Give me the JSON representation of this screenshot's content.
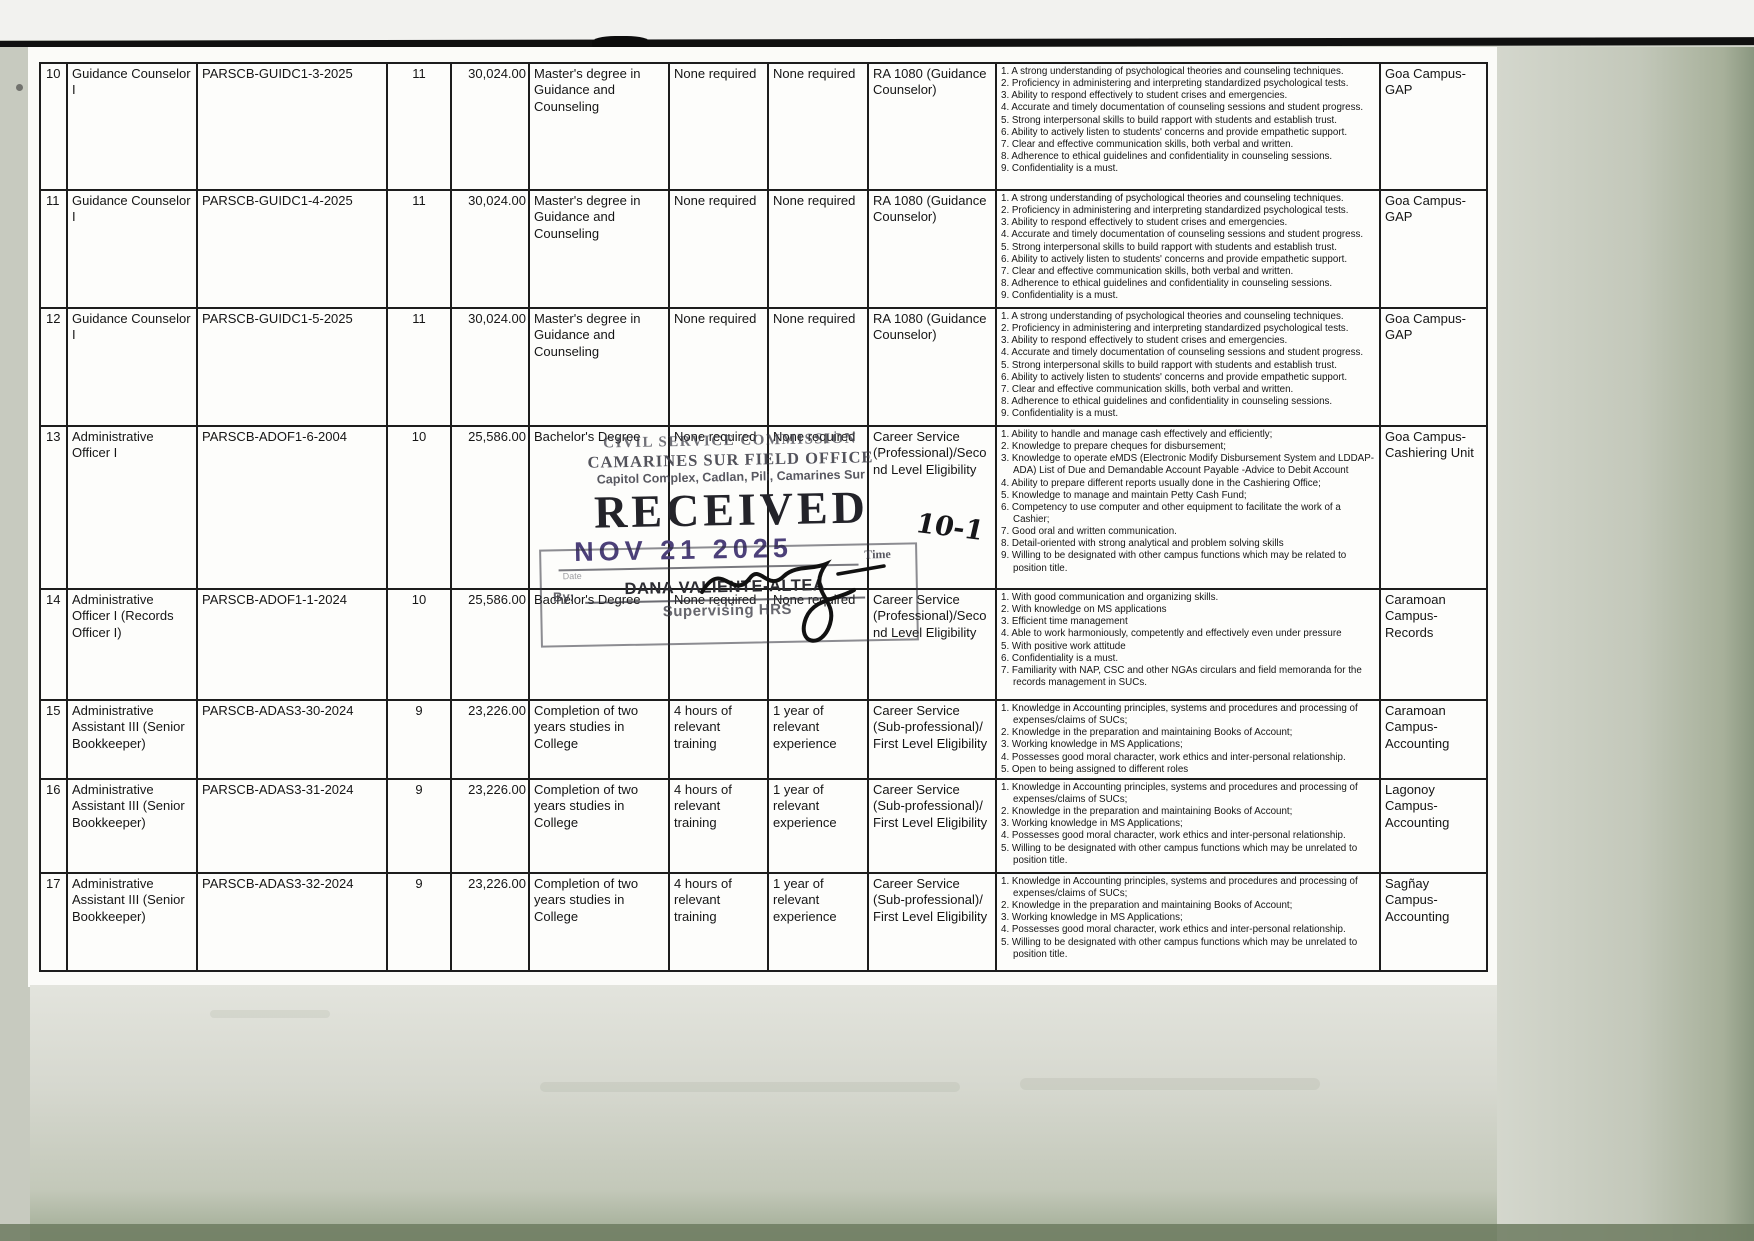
{
  "table": {
    "rows": [
      {
        "no": "10",
        "position": "Guidance Counselor I",
        "item_no": "PARSCB-GUIDC1-3-2025",
        "sg": "11",
        "salary": "30,024.00",
        "education": "Master's degree in Guidance and Counseling",
        "training": "None required",
        "experience": "None required",
        "eligibility": "RA 1080 (Guidance Counselor)",
        "competencies": [
          "A strong understanding of psychological theories and counseling techniques.",
          "Proficiency in administering and interpreting standardized psychological tests.",
          "Ability to respond effectively to student crises and emergencies.",
          "Accurate and timely documentation of counseling sessions and student progress.",
          "Strong interpersonal skills to build rapport with students and establish trust.",
          "Ability to actively listen to students' concerns and provide empathetic support.",
          "Clear and effective communication skills, both verbal and written.",
          "Adherence to ethical guidelines and confidentiality in counseling sessions.",
          "Confidentiality is a must."
        ],
        "assignment": "Goa Campus-GAP"
      },
      {
        "no": "11",
        "position": "Guidance Counselor I",
        "item_no": "PARSCB-GUIDC1-4-2025",
        "sg": "11",
        "salary": "30,024.00",
        "education": "Master's degree in Guidance and Counseling",
        "training": "None required",
        "experience": "None required",
        "eligibility": "RA 1080 (Guidance Counselor)",
        "competencies": [
          "A strong understanding of psychological theories and counseling techniques.",
          "Proficiency in administering and interpreting standardized psychological tests.",
          "Ability to respond effectively to student crises and emergencies.",
          "Accurate and timely documentation of counseling sessions and student progress.",
          "Strong interpersonal skills to build rapport with students and establish trust.",
          "Ability to actively listen to students' concerns and provide empathetic support.",
          "Clear and effective communication skills, both verbal and written.",
          "Adherence to ethical guidelines and confidentiality in counseling sessions.",
          "Confidentiality is a must."
        ],
        "assignment": "Goa Campus-GAP"
      },
      {
        "no": "12",
        "position": "Guidance Counselor I",
        "item_no": "PARSCB-GUIDC1-5-2025",
        "sg": "11",
        "salary": "30,024.00",
        "education": "Master's degree in Guidance and Counseling",
        "training": "None required",
        "experience": "None required",
        "eligibility": "RA 1080 (Guidance Counselor)",
        "competencies": [
          "A strong understanding of psychological theories and counseling techniques.",
          "Proficiency in administering and interpreting standardized psychological tests.",
          "Ability to respond effectively to student crises and emergencies.",
          "Accurate and timely documentation of counseling sessions and student progress.",
          "Strong interpersonal skills to build rapport with students and establish trust.",
          "Ability to actively listen to students' concerns and provide empathetic support.",
          "Clear and effective communication skills, both verbal and written.",
          "Adherence to ethical guidelines and confidentiality in counseling sessions.",
          "Confidentiality is a must."
        ],
        "assignment": "Goa Campus-GAP"
      },
      {
        "no": "13",
        "position": "Administrative Officer I",
        "item_no": "PARSCB-ADOF1-6-2004",
        "sg": "10",
        "salary": "25,586.00",
        "education": "Bachelor's Degree",
        "training": "None required",
        "experience": "None required",
        "eligibility": "Career Service (Professional)/Second Level Eligibility",
        "competencies": [
          "Ability to handle and manage cash effectively and efficiently;",
          "Knowledge to prepare cheques for disbursement;",
          "Knowledge to operate eMDS (Electronic Modify Disbursement System and LDDAP-ADA) List of Due and Demandable Account Payable -Advice to Debit Account",
          "Ability to prepare different reports usually done in the Cashiering Office;",
          "Knowledge to manage and maintain Petty Cash Fund;",
          "Competency to use computer and other equipment to facilitate the work of a Cashier;",
          "Good oral and written communication.",
          "Detail-oriented with strong analytical and problem solving skills",
          "Willing to be designated with other campus functions which may be related to position title."
        ],
        "assignment": "Goa Campus-Cashiering Unit"
      },
      {
        "no": "14",
        "position": "Administrative Officer I (Records Officer I)",
        "item_no": "PARSCB-ADOF1-1-2024",
        "sg": "10",
        "salary": "25,586.00",
        "education": "Bachelor's Degree",
        "training": "None required",
        "experience": "None required",
        "eligibility": "Career Service (Professional)/Second Level Eligibility",
        "competencies": [
          "With good communication and organizing skills.",
          "With knowledge on MS applications",
          "Efficient time management",
          "Able to work harmoniously, competently and effectively even under pressure",
          "With positive work attitude",
          "Confidentiality is a must.",
          "Familiarity with NAP, CSC and other NGAs circulars and field memoranda for the records management in SUCs."
        ],
        "assignment": "Caramoan Campus-Records"
      },
      {
        "no": "15",
        "position": "Administrative Assistant III (Senior Bookkeeper)",
        "item_no": "PARSCB-ADAS3-30-2024",
        "sg": "9",
        "salary": "23,226.00",
        "education": "Completion of two years studies in College",
        "training": "4 hours of relevant training",
        "experience": "1 year of relevant experience",
        "eligibility": "Career Service (Sub-professional)/ First Level Eligibility",
        "competencies": [
          "Knowledge in Accounting principles, systems and procedures and processing of expenses/claims of SUCs;",
          "Knowledge in the preparation and maintaining Books of Account;",
          "Working knowledge in MS Applications;",
          "Possesses good moral character, work ethics and inter-personal relationship.",
          "Open to being assigned to different roles"
        ],
        "assignment": "Caramoan Campus-Accounting"
      },
      {
        "no": "16",
        "position": "Administrative Assistant III (Senior Bookkeeper)",
        "item_no": "PARSCB-ADAS3-31-2024",
        "sg": "9",
        "salary": "23,226.00",
        "education": "Completion of two years studies in College",
        "training": "4 hours of relevant training",
        "experience": "1 year of relevant experience",
        "eligibility": "Career Service (Sub-professional)/ First Level Eligibility",
        "competencies": [
          "Knowledge in Accounting principles, systems and procedures and processing of expenses/claims of SUCs;",
          "Knowledge in the preparation and maintaining Books of Account;",
          "Working knowledge in MS Applications;",
          "Possesses good moral character, work ethics and inter-personal relationship.",
          "Willing to be designated with other campus functions which may be unrelated to position title."
        ],
        "assignment": "Lagonoy Campus-Accounting"
      },
      {
        "no": "17",
        "position": "Administrative Assistant III (Senior Bookkeeper)",
        "item_no": "PARSCB-ADAS3-32-2024",
        "sg": "9",
        "salary": "23,226.00",
        "education": "Completion of two years studies in College",
        "training": "4 hours of relevant training",
        "experience": "1 year of relevant experience",
        "eligibility": "Career Service (Sub-professional)/ First Level Eligibility",
        "competencies": [
          "Knowledge in Accounting principles, systems and procedures and processing of expenses/claims of SUCs;",
          "Knowledge in the preparation and maintaining Books of Account;",
          "Working knowledge in MS Applications;",
          "Possesses good moral character, work ethics and inter-personal relationship.",
          "Willing to be designated with other campus functions which may be unrelated to position title."
        ],
        "assignment": "Sagñay Campus-Accounting"
      }
    ]
  },
  "stamp": {
    "line1": "CIVIL SERVICE COMMISSION",
    "line2": "CAMARINES SUR FIELD OFFICE",
    "line3": "Capitol Complex, Cadlan, Pili, Camarines Sur",
    "received": "RECEIVED",
    "date": "NOV 21 2025",
    "date_label": "Date",
    "time_label": "Time",
    "time_value": "10-1",
    "by_label": "By:",
    "name": "DANA VALIENTE-ALTEA",
    "title": "Supervising HRS"
  },
  "colors": {
    "stamp_ink": "#3c3c46",
    "date_ink": "#4c4079",
    "paper": "#fbfbf8",
    "border": "#1d1d1d"
  }
}
